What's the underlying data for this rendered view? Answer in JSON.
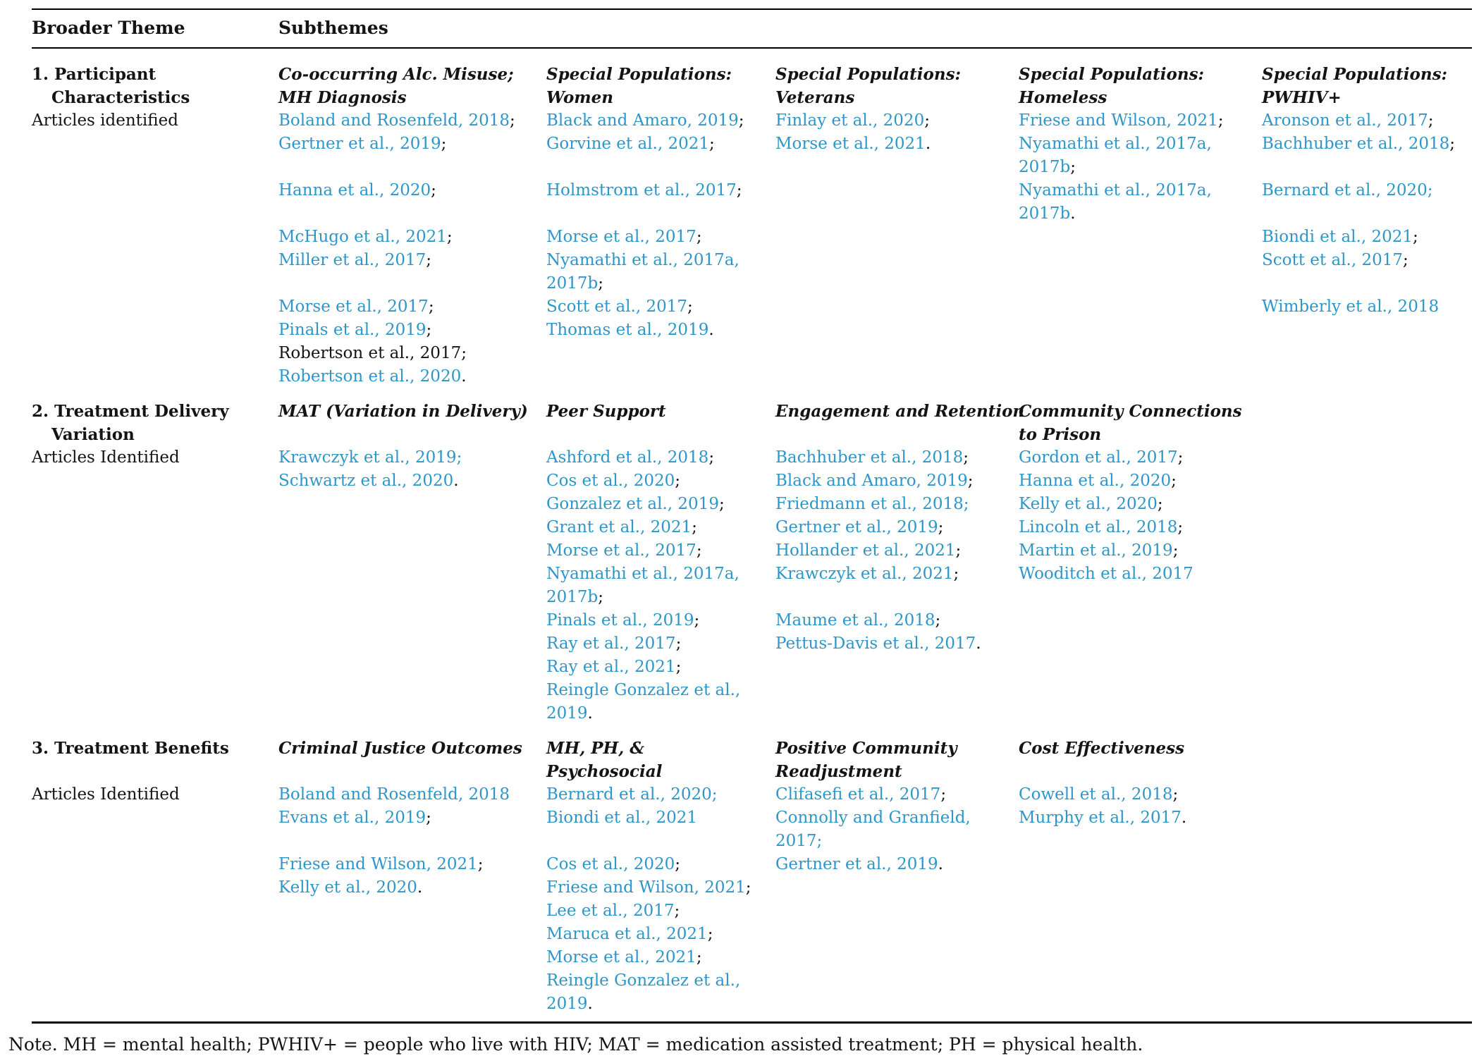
{
  "colors": {
    "link": "#2E96C9",
    "text": "#141414",
    "rule": "#000000"
  },
  "table": {
    "headers": [
      "Broader Theme",
      "Subthemes"
    ],
    "rows": [
      {
        "theme": [
          {
            "t": "1. Participant",
            "bold": true
          },
          {
            "t": "Characteristics",
            "bold": true,
            "indent": true
          },
          {
            "t": "Articles identified"
          }
        ],
        "cells": [
          {
            "subtheme": [
              "Co-occurring Alc. Misuse;",
              "MH Diagnosis"
            ],
            "items": [
              {
                "t": "Boland and Rosenfeld, 2018",
                "p": ";"
              },
              {
                "t": "Gertner et al., 2019",
                "p": ";"
              },
              {
                "blank": true
              },
              {
                "t": "Hanna et al., 2020",
                "p": ";"
              },
              {
                "blank": true
              },
              {
                "t": "McHugo et al., 2021",
                "p": ";"
              },
              {
                "t": "Miller et al., 2017",
                "p": ";"
              },
              {
                "blank": true
              },
              {
                "t": "Morse et al., 2017",
                "p": ";"
              },
              {
                "t": "Pinals et al., 2019",
                "p": ";"
              },
              {
                "t": "Robertson et al., 2017;",
                "link": false
              },
              {
                "t": "Robertson et al., 2020",
                "p": "."
              }
            ]
          },
          {
            "subtheme": [
              "Special Populations:",
              "Women"
            ],
            "items": [
              {
                "t": "Black and Amaro, 2019",
                "p": ";"
              },
              {
                "t": "Gorvine et al., 2021",
                "p": ";"
              },
              {
                "blank": true
              },
              {
                "t": "Holmstrom et al., 2017",
                "p": ";"
              },
              {
                "blank": true
              },
              {
                "t": "Morse et al., 2017",
                "p": ";"
              },
              {
                "t": "Nyamathi et al., 2017a, 2017b",
                "p": ";"
              },
              {
                "t": "Scott et al., 2017",
                "p": ";"
              },
              {
                "t": "Thomas et al., 2019",
                "p": "."
              }
            ]
          },
          {
            "subtheme": [
              "Special Populations:",
              "Veterans"
            ],
            "items": [
              {
                "t": "Finlay et al., 2020",
                "p": ";"
              },
              {
                "t": "Morse et al., 2021",
                "p": "."
              }
            ]
          },
          {
            "subtheme": [
              "Special Populations:",
              "Homeless"
            ],
            "items": [
              {
                "t": "Friese and Wilson, 2021",
                "p": ";"
              },
              {
                "t": "Nyamathi et al., 2017a, 2017b",
                "p": ";"
              },
              {
                "t": "Nyamathi et al., 2017a, 2017b",
                "p": "."
              }
            ]
          },
          {
            "subtheme": [
              "Special Populations:",
              "PWHIV+"
            ],
            "items": [
              {
                "t": "Aronson et al., 2017",
                "p": ";"
              },
              {
                "t": "Bachhuber et al., 2018",
                "p": ";"
              },
              {
                "blank": true
              },
              {
                "t": "Bernard et al., 2020;"
              },
              {
                "blank": true
              },
              {
                "t": "Biondi et al., 2021",
                "p": ";"
              },
              {
                "t": "Scott et al., 2017",
                "p": ";"
              },
              {
                "blank": true
              },
              {
                "t": "Wimberly et al., 2018"
              }
            ]
          }
        ]
      },
      {
        "theme": [
          {
            "t": "2. Treatment Delivery",
            "bold": true
          },
          {
            "t": "Variation",
            "bold": true,
            "indent": true
          },
          {
            "t": "Articles Identified"
          }
        ],
        "cells": [
          {
            "subtheme": [
              "MAT (Variation in Delivery)"
            ],
            "items": [
              {
                "blank": true
              },
              {
                "t": "Krawczyk et al., 2019;"
              },
              {
                "t": "Schwartz et al., 2020",
                "p": "."
              }
            ]
          },
          {
            "subtheme": [
              "Peer Support"
            ],
            "items": [
              {
                "blank": true
              },
              {
                "t": "Ashford et al., 2018",
                "p": ";"
              },
              {
                "t": "Cos et al., 2020",
                "p": ";"
              },
              {
                "t": "Gonzalez et al., 2019",
                "p": ";"
              },
              {
                "t": "Grant et al., 2021",
                "p": ";"
              },
              {
                "t": "Morse et al., 2017",
                "p": ";"
              },
              {
                "t": "Nyamathi et al., 2017a, 2017b",
                "p": ";"
              },
              {
                "t": "Pinals et al., 2019",
                "p": ";"
              },
              {
                "t": "Ray et al., 2017",
                "p": ";"
              },
              {
                "t": "Ray et al., 2021",
                "p": ";"
              },
              {
                "t": "Reingle Gonzalez et al., 2019",
                "p": "."
              }
            ]
          },
          {
            "subtheme": [
              "Engagement and Retention"
            ],
            "items": [
              {
                "blank": true
              },
              {
                "t": "Bachhuber et al., 2018",
                "p": ";"
              },
              {
                "t": "Black and Amaro, 2019",
                "p": ";"
              },
              {
                "t": "Friedmann et al., 2018;"
              },
              {
                "t": "Gertner et al., 2019",
                "p": ";"
              },
              {
                "t": "Hollander et al., 2021",
                "p": ";"
              },
              {
                "t": "Krawczyk et al., 2021",
                "p": ";"
              },
              {
                "blank": true
              },
              {
                "t": "Maume et al., 2018",
                "p": ";"
              },
              {
                "t": "Pettus-Davis et al., 2017",
                "p": "."
              }
            ]
          },
          {
            "subtheme": [
              "Community Connections",
              "to Prison"
            ],
            "items": [
              {
                "t": "Gordon et al., 2017",
                "p": ";"
              },
              {
                "t": "Hanna et al., 2020",
                "p": ";"
              },
              {
                "t": "Kelly et al., 2020",
                "p": ";"
              },
              {
                "t": "Lincoln et al., 2018",
                "p": ";"
              },
              {
                "t": "Martin et al., 2019",
                "p": ";"
              },
              {
                "t": "Wooditch et al., 2017"
              }
            ]
          },
          {
            "subtheme": [],
            "items": []
          }
        ]
      },
      {
        "theme": [
          {
            "t": "3. Treatment Benefits",
            "bold": true
          },
          {
            "blank": true
          },
          {
            "t": "Articles Identified"
          }
        ],
        "cells": [
          {
            "subtheme": [
              "Criminal Justice Outcomes"
            ],
            "items": [
              {
                "blank": true
              },
              {
                "t": "Boland and Rosenfeld, 2018"
              },
              {
                "t": "Evans et al., 2019",
                "p": ";"
              },
              {
                "blank": true
              },
              {
                "t": "Friese and Wilson, 2021",
                "p": ";"
              },
              {
                "t": "Kelly et al., 2020",
                "p": "."
              }
            ]
          },
          {
            "subtheme": [
              "MH, PH, &",
              "Psychosocial"
            ],
            "items": [
              {
                "t": "Bernard et al., 2020;"
              },
              {
                "t": "Biondi et al., 2021"
              },
              {
                "blank": true
              },
              {
                "t": "Cos et al., 2020",
                "p": ";"
              },
              {
                "t": "Friese and Wilson, 2021",
                "p": ";"
              },
              {
                "t": "Lee et al., 2017",
                "p": ";"
              },
              {
                "t": "Maruca et al., 2021",
                "p": ";"
              },
              {
                "t": "Morse et al., 2021",
                "p": ";"
              },
              {
                "t": "Reingle Gonzalez et al., 2019",
                "p": "."
              }
            ]
          },
          {
            "subtheme": [
              "Positive Community",
              "Readjustment"
            ],
            "items": [
              {
                "t": "Clifasefi et al., 2017",
                "p": ";"
              },
              {
                "t": "Connolly and Granfield, 2017;"
              },
              {
                "t": "Gertner et al., 2019",
                "p": "."
              }
            ]
          },
          {
            "subtheme": [
              "Cost Effectiveness"
            ],
            "items": [
              {
                "blank": true
              },
              {
                "t": "Cowell et al., 2018",
                "p": ";"
              },
              {
                "t": "Murphy et al., 2017",
                "p": "."
              }
            ]
          },
          {
            "subtheme": [],
            "items": []
          }
        ]
      }
    ],
    "note": "Note. MH = mental health; PWHIV+ = people who live with HIV; MAT = medication assisted treatment; PH = physical health."
  }
}
